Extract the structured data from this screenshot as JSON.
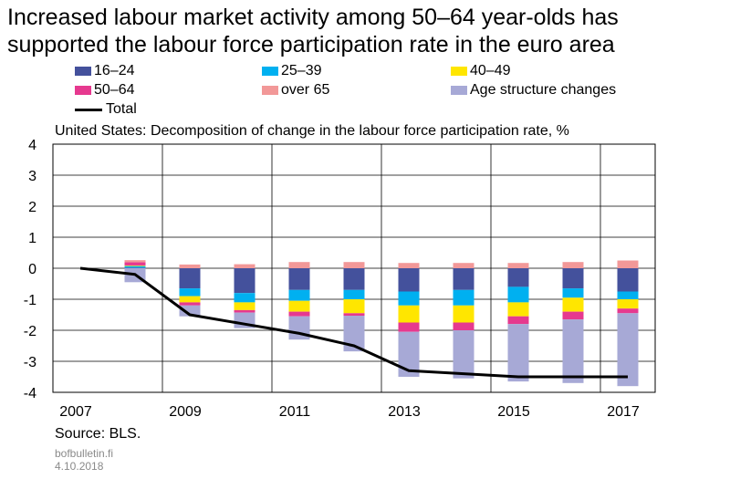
{
  "title_lines": [
    "Increased labour market activity among 50–64 year-olds has",
    "supported the labour force participation rate in the euro area"
  ],
  "subtitle": "United States: Decomposition of change in the labour force participation rate, %",
  "source": "Source: BLS.",
  "site": "bofbulletin.fi",
  "date": "4.10.2018",
  "chart_data": {
    "type": "bar",
    "stacked": true,
    "categories": [
      "2007",
      "2008",
      "2009",
      "2010",
      "2011",
      "2012",
      "2013",
      "2014",
      "2015",
      "2016",
      "2017"
    ],
    "x_tick_labels": [
      "2007",
      "2009",
      "2011",
      "2013",
      "2015",
      "2017"
    ],
    "ylim": [
      -4,
      4
    ],
    "yticks": [
      4,
      3,
      2,
      1,
      0,
      -1,
      -2,
      -3,
      -4
    ],
    "grid": true,
    "legend_position": "top",
    "series": [
      {
        "name": "16–24",
        "color": "#44519c",
        "values": [
          0,
          0.02,
          -0.65,
          -0.8,
          -0.7,
          -0.7,
          -0.75,
          -0.7,
          -0.6,
          -0.65,
          -0.75
        ]
      },
      {
        "name": "25–39",
        "color": "#00b0f0",
        "values": [
          0,
          0.05,
          -0.25,
          -0.3,
          -0.35,
          -0.3,
          -0.45,
          -0.5,
          -0.5,
          -0.3,
          -0.25
        ]
      },
      {
        "name": "40–49",
        "color": "#ffe600",
        "values": [
          0,
          0.02,
          -0.2,
          -0.25,
          -0.35,
          -0.45,
          -0.55,
          -0.55,
          -0.45,
          -0.45,
          -0.3
        ]
      },
      {
        "name": "50–64",
        "color": "#e6398f",
        "values": [
          0,
          0.1,
          -0.1,
          -0.08,
          -0.15,
          -0.08,
          -0.3,
          -0.25,
          -0.25,
          -0.25,
          -0.15
        ]
      },
      {
        "name": "over 65",
        "color": "#f29898",
        "values": [
          0,
          0.07,
          0.12,
          0.13,
          0.2,
          0.2,
          0.17,
          0.17,
          0.17,
          0.2,
          0.25
        ]
      },
      {
        "name": "Age structure changes",
        "color": "#a7a9d6",
        "values": [
          0,
          -0.45,
          -0.35,
          -0.5,
          -0.75,
          -1.15,
          -1.45,
          -1.55,
          -1.85,
          -2.05,
          -2.35
        ]
      }
    ],
    "total": {
      "name": "Total",
      "color": "#000000",
      "values": [
        0,
        -0.2,
        -1.5,
        -1.8,
        -2.1,
        -2.5,
        -3.3,
        -3.4,
        -3.5,
        -3.5,
        -3.5
      ]
    }
  }
}
